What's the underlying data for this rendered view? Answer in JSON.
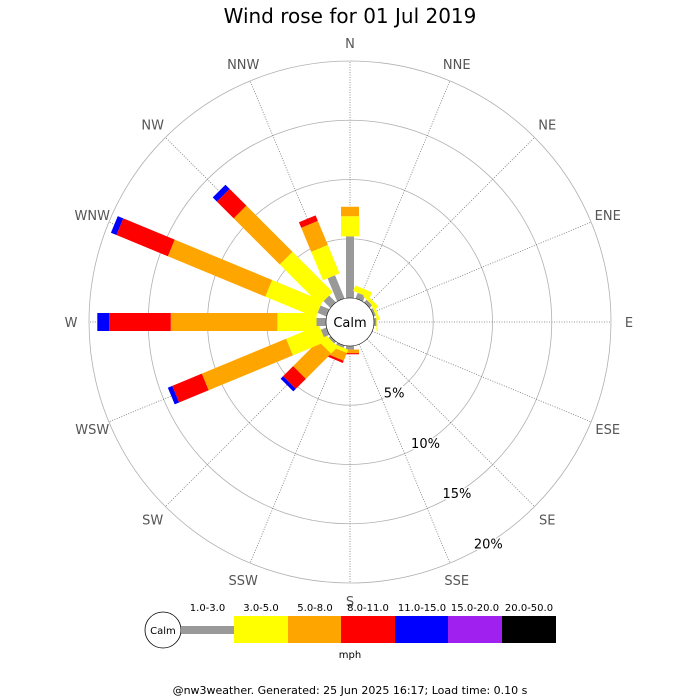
{
  "chart_data": {
    "type": "wind-rose",
    "title": "Wind rose for 01 Jul 2019",
    "center_label": "Calm",
    "directions": [
      "N",
      "NNE",
      "NE",
      "ENE",
      "E",
      "ESE",
      "SE",
      "SSE",
      "S",
      "SSW",
      "SW",
      "WSW",
      "W",
      "WNW",
      "NW",
      "NNW"
    ],
    "ring_labels": [
      "5%",
      "10%",
      "15%",
      "20%"
    ],
    "rings": [
      5,
      10,
      15,
      20
    ],
    "bins": [
      {
        "name": "1.0-3.0",
        "color": "#999999"
      },
      {
        "name": "3.0-5.0",
        "color": "#ffff00"
      },
      {
        "name": "5.0-8.0",
        "color": "#ffa500"
      },
      {
        "name": "8.0-11.0",
        "color": "#ff0000"
      },
      {
        "name": "11.0-15.0",
        "color": "#0000ff"
      },
      {
        "name": "15.0-20.0",
        "color": "#a020f0"
      },
      {
        "name": "20.0-50.0",
        "color": "#000000"
      }
    ],
    "unit": "mph",
    "calm_pct": 2.0,
    "series": [
      {
        "direction": "N",
        "values": [
          5.2,
          1.7,
          0.8,
          0,
          0,
          0,
          0
        ]
      },
      {
        "direction": "NNE",
        "values": [
          0.5,
          0.5,
          0,
          0,
          0,
          0,
          0
        ]
      },
      {
        "direction": "NE",
        "values": [
          0.3,
          0.3,
          0,
          0,
          0,
          0,
          0
        ]
      },
      {
        "direction": "ENE",
        "values": [
          0.2,
          0.2,
          0,
          0,
          0,
          0,
          0
        ]
      },
      {
        "direction": "E",
        "values": [
          0.2,
          0.1,
          0,
          0,
          0,
          0,
          0
        ]
      },
      {
        "direction": "ESE",
        "values": [
          0,
          0,
          0,
          0,
          0,
          0,
          0
        ]
      },
      {
        "direction": "SE",
        "values": [
          0,
          0,
          0,
          0,
          0,
          0,
          0
        ]
      },
      {
        "direction": "SSE",
        "values": [
          0,
          0,
          0,
          0,
          0,
          0,
          0
        ]
      },
      {
        "direction": "S",
        "values": [
          0.3,
          0,
          0.3,
          0.1,
          0,
          0,
          0
        ]
      },
      {
        "direction": "SSW",
        "values": [
          0.2,
          0.3,
          0.7,
          0.2,
          0,
          0,
          0
        ]
      },
      {
        "direction": "SW",
        "values": [
          0.2,
          0.8,
          3.0,
          1.2,
          0.3,
          0,
          0
        ]
      },
      {
        "direction": "WSW",
        "values": [
          0.5,
          3.0,
          7.7,
          2.7,
          0.4,
          0,
          0
        ]
      },
      {
        "direction": "W",
        "values": [
          0.8,
          3.3,
          9.0,
          5.2,
          1.0,
          0,
          0
        ]
      },
      {
        "direction": "WNW",
        "values": [
          0.8,
          4.6,
          8.9,
          4.7,
          0.5,
          0,
          0
        ]
      },
      {
        "direction": "NW",
        "values": [
          0.8,
          4.8,
          5.5,
          2.0,
          0.5,
          0,
          0
        ]
      },
      {
        "direction": "NNW",
        "values": [
          2.1,
          2.6,
          2.2,
          0.5,
          0,
          0,
          0
        ]
      }
    ]
  },
  "footer": "@nw3weather. Generated: 25 Jun 2025 16:17; Load time: 0.10 s"
}
